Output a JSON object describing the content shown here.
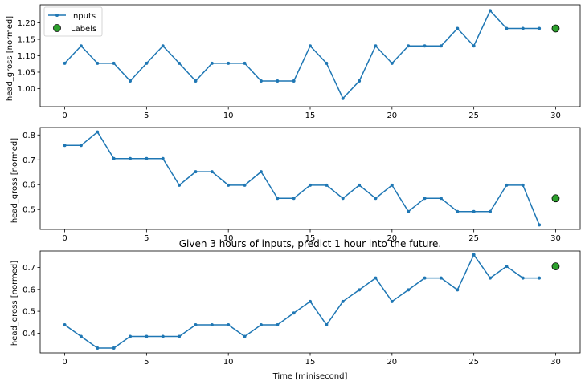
{
  "figure": {
    "background": "#ffffff",
    "title": "Given 3 hours of inputs, predict 1 hour into the future.",
    "xlabel": "Time [minisecond]"
  },
  "colors": {
    "input_line": "#1f77b4",
    "label_marker": "#2ca02c",
    "label_edge": "#000000",
    "axes_edge": "#000000"
  },
  "legend": {
    "inputs_label": "Inputs",
    "labels_label": "Labels",
    "placement": "upper-left of first panel"
  },
  "chart_data": [
    {
      "type": "line",
      "ylabel": "head_gross [normed]",
      "xlim": [
        -1.5,
        31.5
      ],
      "ylim": [
        0.945,
        1.255
      ],
      "xticks": [
        0,
        5,
        10,
        15,
        20,
        25,
        30
      ],
      "yticks": [
        1.0,
        1.05,
        1.1,
        1.15,
        1.2
      ],
      "ytick_labels": [
        "1.00",
        "1.05",
        "1.10",
        "1.15",
        "1.20"
      ],
      "show_legend": true,
      "series": [
        {
          "name": "Inputs",
          "x": [
            0,
            1,
            2,
            3,
            4,
            5,
            6,
            7,
            8,
            9,
            10,
            11,
            12,
            13,
            14,
            15,
            16,
            17,
            18,
            19,
            20,
            21,
            22,
            23,
            24,
            25,
            26,
            27,
            28,
            29
          ],
          "values": [
            1.077,
            1.13,
            1.077,
            1.077,
            1.023,
            1.077,
            1.13,
            1.077,
            1.023,
            1.077,
            1.077,
            1.077,
            1.023,
            1.023,
            1.023,
            1.13,
            1.077,
            0.97,
            1.023,
            1.13,
            1.077,
            1.13,
            1.13,
            1.13,
            1.183,
            1.13,
            1.237,
            1.183,
            1.183,
            1.183
          ]
        },
        {
          "name": "Labels",
          "x": [
            30
          ],
          "values": [
            1.183
          ]
        }
      ]
    },
    {
      "type": "line",
      "ylabel": "head_gross [normed]",
      "xlim": [
        -1.5,
        31.5
      ],
      "ylim": [
        0.42,
        0.83
      ],
      "xticks": [
        0,
        5,
        10,
        15,
        20,
        25,
        30
      ],
      "yticks": [
        0.5,
        0.6,
        0.7,
        0.8
      ],
      "ytick_labels": [
        "0.5",
        "0.6",
        "0.7",
        "0.8"
      ],
      "show_legend": false,
      "series": [
        {
          "name": "Inputs",
          "x": [
            0,
            1,
            2,
            3,
            4,
            5,
            6,
            7,
            8,
            9,
            10,
            11,
            12,
            13,
            14,
            15,
            16,
            17,
            18,
            19,
            20,
            21,
            22,
            23,
            24,
            25,
            26,
            27,
            28,
            29
          ],
          "values": [
            0.758,
            0.758,
            0.812,
            0.705,
            0.705,
            0.705,
            0.705,
            0.598,
            0.652,
            0.652,
            0.598,
            0.598,
            0.652,
            0.545,
            0.545,
            0.598,
            0.598,
            0.545,
            0.598,
            0.545,
            0.598,
            0.492,
            0.545,
            0.545,
            0.492,
            0.492,
            0.492,
            0.598,
            0.598,
            0.438
          ]
        },
        {
          "name": "Labels",
          "x": [
            30
          ],
          "values": [
            0.545
          ]
        }
      ]
    },
    {
      "type": "line",
      "ylabel": "head_gross [normed]",
      "xlim": [
        -1.5,
        31.5
      ],
      "ylim": [
        0.31,
        0.775
      ],
      "xticks": [
        0,
        5,
        10,
        15,
        20,
        25,
        30
      ],
      "yticks": [
        0.4,
        0.5,
        0.6,
        0.7
      ],
      "ytick_labels": [
        "0.4",
        "0.5",
        "0.6",
        "0.7"
      ],
      "show_legend": false,
      "series": [
        {
          "name": "Inputs",
          "x": [
            0,
            1,
            2,
            3,
            4,
            5,
            6,
            7,
            8,
            9,
            10,
            11,
            12,
            13,
            14,
            15,
            16,
            17,
            18,
            19,
            20,
            21,
            22,
            23,
            24,
            25,
            26,
            27,
            28,
            29
          ],
          "values": [
            0.438,
            0.385,
            0.332,
            0.332,
            0.385,
            0.385,
            0.385,
            0.385,
            0.438,
            0.438,
            0.438,
            0.385,
            0.438,
            0.438,
            0.492,
            0.545,
            0.438,
            0.545,
            0.598,
            0.652,
            0.545,
            0.598,
            0.652,
            0.652,
            0.598,
            0.758,
            0.652,
            0.705,
            0.652,
            0.652
          ]
        },
        {
          "name": "Labels",
          "x": [
            30
          ],
          "values": [
            0.705
          ]
        }
      ]
    }
  ]
}
